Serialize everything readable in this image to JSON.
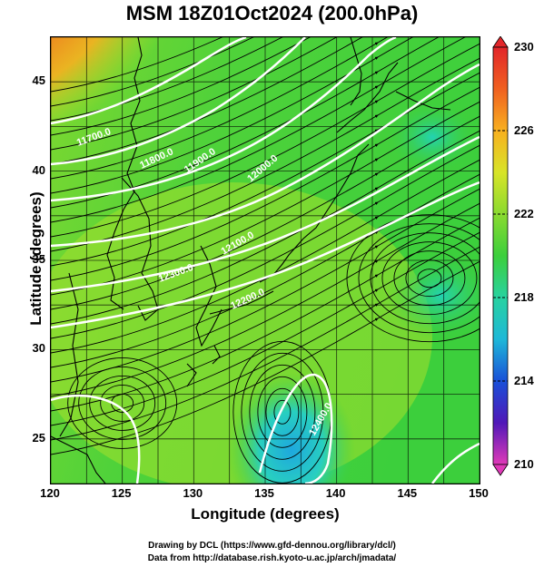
{
  "title": "MSM 18Z01Oct2024 (200.0hPa)",
  "xlabel": "Longitude (degrees)",
  "ylabel": "Latitude  (degrees)",
  "xticks": [
    "120",
    "125",
    "130",
    "135",
    "140",
    "145",
    "150"
  ],
  "yticks": [
    "25",
    "30",
    "35",
    "40",
    "45"
  ],
  "colorbar_labels": [
    "230",
    "226",
    "222",
    "218",
    "214",
    "210"
  ],
  "contour_labels": [
    "11700.0",
    "11800.0",
    "11900.0",
    "12000.0",
    "12100.0",
    "12200.0",
    "12300.0",
    "12400.0"
  ],
  "footer_line1": "Drawing by DCL (https://www.gfd-dennou.org/library/dcl/)",
  "footer_line2": "Data from http://database.rish.kyoto-u.ac.jp/arch/jmadata/",
  "chart_data": {
    "type": "map",
    "xlim": [
      120,
      150
    ],
    "ylim": [
      22.5,
      47.5
    ],
    "colorbar_range": [
      210,
      230
    ],
    "colors": {
      "high": "#e8281e",
      "warm": "#f59b22",
      "mid": "#a8e02a",
      "base": "#3ccf3c",
      "cool": "#2fd6a8",
      "low": "#20b8d8"
    }
  }
}
